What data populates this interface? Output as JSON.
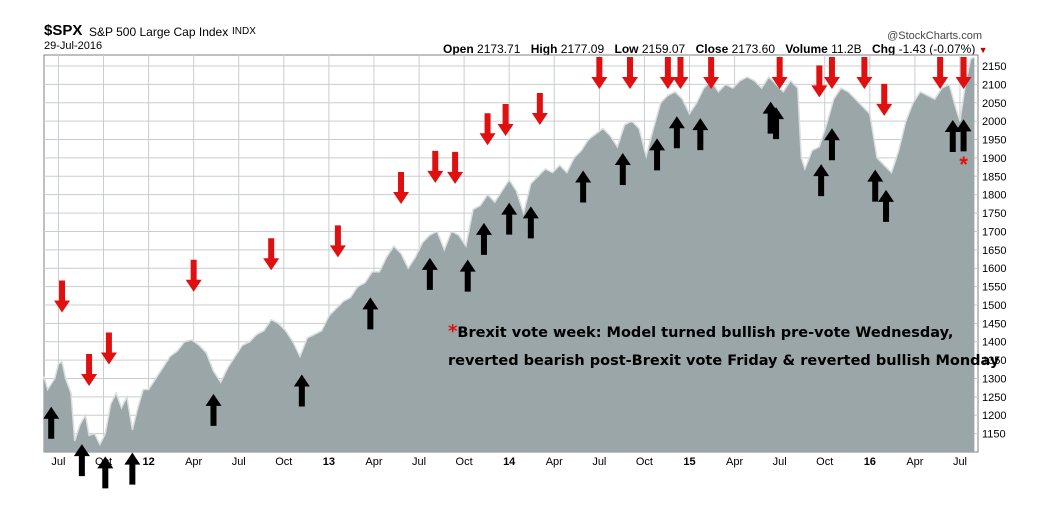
{
  "header": {
    "symbol": "$SPX",
    "name": "S&P 500 Large Cap Index",
    "exchange": "INDX",
    "date": "29-Jul-2016",
    "watermark": "@StockCharts.com",
    "quote": {
      "open_label": "Open",
      "open": "2173.71",
      "high_label": "High",
      "high": "2177.09",
      "low_label": "Low",
      "low": "2159.07",
      "close_label": "Close",
      "close": "2173.60",
      "volume_label": "Volume",
      "volume": "11.2B",
      "chg_label": "Chg",
      "chg": "-1.43 (-0.07%)"
    }
  },
  "annotation": {
    "star": "*",
    "line1": "Brexit vote week: Model turned bullish pre-vote Wednesday,",
    "line2": "reverted bearish post-Brexit vote Friday & reverted bullish Monday"
  },
  "chart_data": {
    "type": "area",
    "title": "$SPX S&P 500 Large Cap Index",
    "xlabel": "",
    "ylabel": "",
    "ylim": [
      1100,
      2180
    ],
    "xlim": [
      2011.42,
      2016.6
    ],
    "grid": true,
    "colors": {
      "fill": "#9aa6a8",
      "line": "#d9dedf",
      "grid": "#c9cdd0",
      "sell": "#e01010",
      "buy": "#000000"
    },
    "y_ticks": [
      1150,
      1200,
      1250,
      1300,
      1350,
      1400,
      1450,
      1500,
      1550,
      1600,
      1650,
      1700,
      1750,
      1800,
      1850,
      1900,
      1950,
      2000,
      2050,
      2100,
      2150
    ],
    "x_ticks": [
      {
        "t": 2011.5,
        "label": "Jul"
      },
      {
        "t": 2011.75,
        "label": "Oct"
      },
      {
        "t": 2012.0,
        "label": "12"
      },
      {
        "t": 2012.25,
        "label": "Apr"
      },
      {
        "t": 2012.5,
        "label": "Jul"
      },
      {
        "t": 2012.75,
        "label": "Oct"
      },
      {
        "t": 2013.0,
        "label": "13"
      },
      {
        "t": 2013.25,
        "label": "Apr"
      },
      {
        "t": 2013.5,
        "label": "Jul"
      },
      {
        "t": 2013.75,
        "label": "Oct"
      },
      {
        "t": 2014.0,
        "label": "14"
      },
      {
        "t": 2014.25,
        "label": "Apr"
      },
      {
        "t": 2014.5,
        "label": "Jul"
      },
      {
        "t": 2014.75,
        "label": "Oct"
      },
      {
        "t": 2015.0,
        "label": "15"
      },
      {
        "t": 2015.25,
        "label": "Apr"
      },
      {
        "t": 2015.5,
        "label": "Jul"
      },
      {
        "t": 2015.75,
        "label": "Oct"
      },
      {
        "t": 2016.0,
        "label": "16"
      },
      {
        "t": 2016.25,
        "label": "Apr"
      },
      {
        "t": 2016.5,
        "label": "Jul"
      }
    ],
    "price_series": [
      [
        2011.42,
        1305
      ],
      [
        2011.44,
        1270
      ],
      [
        2011.46,
        1285
      ],
      [
        2011.48,
        1300
      ],
      [
        2011.5,
        1340
      ],
      [
        2011.52,
        1345
      ],
      [
        2011.54,
        1300
      ],
      [
        2011.57,
        1260
      ],
      [
        2011.59,
        1130
      ],
      [
        2011.62,
        1175
      ],
      [
        2011.65,
        1200
      ],
      [
        2011.67,
        1145
      ],
      [
        2011.7,
        1150
      ],
      [
        2011.73,
        1120
      ],
      [
        2011.76,
        1150
      ],
      [
        2011.79,
        1230
      ],
      [
        2011.82,
        1260
      ],
      [
        2011.85,
        1220
      ],
      [
        2011.88,
        1250
      ],
      [
        2011.91,
        1160
      ],
      [
        2011.94,
        1220
      ],
      [
        2011.97,
        1270
      ],
      [
        2012.0,
        1270
      ],
      [
        2012.04,
        1300
      ],
      [
        2012.08,
        1330
      ],
      [
        2012.12,
        1360
      ],
      [
        2012.16,
        1375
      ],
      [
        2012.2,
        1400
      ],
      [
        2012.24,
        1405
      ],
      [
        2012.28,
        1390
      ],
      [
        2012.32,
        1370
      ],
      [
        2012.36,
        1320
      ],
      [
        2012.4,
        1290
      ],
      [
        2012.44,
        1330
      ],
      [
        2012.48,
        1360
      ],
      [
        2012.52,
        1390
      ],
      [
        2012.56,
        1400
      ],
      [
        2012.6,
        1420
      ],
      [
        2012.64,
        1430
      ],
      [
        2012.68,
        1460
      ],
      [
        2012.72,
        1450
      ],
      [
        2012.76,
        1430
      ],
      [
        2012.8,
        1400
      ],
      [
        2012.84,
        1360
      ],
      [
        2012.88,
        1410
      ],
      [
        2012.92,
        1420
      ],
      [
        2012.96,
        1430
      ],
      [
        2013.0,
        1470
      ],
      [
        2013.04,
        1490
      ],
      [
        2013.08,
        1510
      ],
      [
        2013.12,
        1520
      ],
      [
        2013.16,
        1550
      ],
      [
        2013.2,
        1560
      ],
      [
        2013.24,
        1590
      ],
      [
        2013.28,
        1590
      ],
      [
        2013.32,
        1630
      ],
      [
        2013.36,
        1660
      ],
      [
        2013.4,
        1640
      ],
      [
        2013.44,
        1600
      ],
      [
        2013.48,
        1630
      ],
      [
        2013.52,
        1670
      ],
      [
        2013.56,
        1690
      ],
      [
        2013.6,
        1700
      ],
      [
        2013.64,
        1650
      ],
      [
        2013.68,
        1700
      ],
      [
        2013.72,
        1690
      ],
      [
        2013.76,
        1660
      ],
      [
        2013.8,
        1760
      ],
      [
        2013.84,
        1770
      ],
      [
        2013.88,
        1800
      ],
      [
        2013.92,
        1780
      ],
      [
        2013.96,
        1810
      ],
      [
        2014.0,
        1840
      ],
      [
        2014.04,
        1810
      ],
      [
        2014.08,
        1750
      ],
      [
        2014.12,
        1830
      ],
      [
        2014.16,
        1850
      ],
      [
        2014.2,
        1870
      ],
      [
        2014.24,
        1860
      ],
      [
        2014.28,
        1880
      ],
      [
        2014.32,
        1860
      ],
      [
        2014.36,
        1900
      ],
      [
        2014.4,
        1920
      ],
      [
        2014.44,
        1950
      ],
      [
        2014.48,
        1965
      ],
      [
        2014.52,
        1980
      ],
      [
        2014.56,
        1960
      ],
      [
        2014.6,
        1930
      ],
      [
        2014.64,
        1990
      ],
      [
        2014.68,
        2000
      ],
      [
        2014.72,
        1980
      ],
      [
        2014.76,
        1905
      ],
      [
        2014.8,
        1980
      ],
      [
        2014.84,
        2050
      ],
      [
        2014.88,
        2070
      ],
      [
        2014.92,
        2080
      ],
      [
        2014.96,
        2060
      ],
      [
        2015.0,
        2020
      ],
      [
        2015.04,
        2050
      ],
      [
        2015.08,
        2090
      ],
      [
        2015.12,
        2110
      ],
      [
        2015.16,
        2080
      ],
      [
        2015.2,
        2100
      ],
      [
        2015.24,
        2090
      ],
      [
        2015.28,
        2110
      ],
      [
        2015.32,
        2120
      ],
      [
        2015.36,
        2110
      ],
      [
        2015.4,
        2090
      ],
      [
        2015.44,
        2120
      ],
      [
        2015.48,
        2100
      ],
      [
        2015.52,
        2080
      ],
      [
        2015.56,
        2110
      ],
      [
        2015.6,
        2090
      ],
      [
        2015.62,
        1900
      ],
      [
        2015.64,
        1870
      ],
      [
        2015.68,
        1920
      ],
      [
        2015.72,
        1930
      ],
      [
        2015.76,
        1990
      ],
      [
        2015.8,
        2060
      ],
      [
        2015.84,
        2090
      ],
      [
        2015.88,
        2080
      ],
      [
        2015.92,
        2060
      ],
      [
        2015.96,
        2040
      ],
      [
        2016.0,
        2020
      ],
      [
        2016.04,
        1900
      ],
      [
        2016.08,
        1880
      ],
      [
        2016.12,
        1860
      ],
      [
        2016.16,
        1920
      ],
      [
        2016.2,
        2000
      ],
      [
        2016.24,
        2050
      ],
      [
        2016.28,
        2080
      ],
      [
        2016.32,
        2070
      ],
      [
        2016.36,
        2060
      ],
      [
        2016.4,
        2090
      ],
      [
        2016.44,
        2100
      ],
      [
        2016.48,
        2030
      ],
      [
        2016.5,
        2000
      ],
      [
        2016.53,
        2100
      ],
      [
        2016.56,
        2170
      ],
      [
        2016.58,
        2174
      ]
    ],
    "sell_signals": [
      2011.52,
      2011.67,
      2011.78,
      2012.25,
      2012.68,
      2013.05,
      2013.4,
      2013.59,
      2013.7,
      2013.88,
      2013.98,
      2014.17,
      2014.5,
      2014.67,
      2014.88,
      2014.95,
      2015.12,
      2015.5,
      2015.72,
      2015.79,
      2015.97,
      2016.08,
      2016.39,
      2016.52
    ],
    "buy_signals": [
      2011.46,
      2011.63,
      2011.76,
      2011.91,
      2012.36,
      2012.85,
      2013.23,
      2013.56,
      2013.77,
      2013.86,
      2014.0,
      2014.12,
      2014.41,
      2014.63,
      2014.82,
      2014.93,
      2015.06,
      2015.45,
      2015.48,
      2015.73,
      2015.79,
      2016.03,
      2016.09,
      2016.46,
      2016.52
    ],
    "annotation_marker": {
      "t": 2016.53,
      "symbol": "*"
    }
  }
}
